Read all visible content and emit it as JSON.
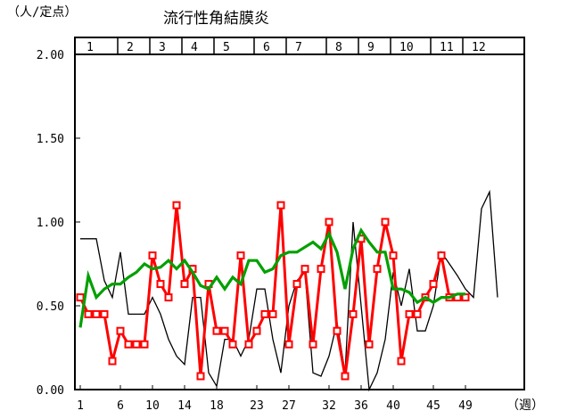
{
  "chart_data": {
    "type": "line",
    "title": "流行性角結膜炎",
    "ylabel": "（人/定点）",
    "xlabel": "（週）",
    "ylim": [
      0,
      2
    ],
    "y_ticks": [
      "0.00",
      "0.50",
      "1.00",
      "1.50",
      "2.00"
    ],
    "xlim": [
      1,
      53
    ],
    "x_ticks": [
      "1",
      "6",
      "10",
      "14",
      "18",
      "23",
      "27",
      "32",
      "36",
      "40",
      "45",
      "49"
    ],
    "month_labels": [
      "1",
      "2",
      "3",
      "4",
      "5",
      "6",
      "7",
      "8",
      "9",
      "10",
      "11",
      "12"
    ],
    "month_start_weeks": [
      1,
      6,
      10,
      14,
      18,
      23,
      27,
      32,
      36,
      40,
      45,
      49
    ],
    "grid": false,
    "series": [
      {
        "color": "#000000",
        "style": "thin",
        "values": [
          0.9,
          0.9,
          0.9,
          0.65,
          0.55,
          0.82,
          0.45,
          0.45,
          0.45,
          0.55,
          0.45,
          0.3,
          0.2,
          0.15,
          0.55,
          0.55,
          0.1,
          0.02,
          0.3,
          0.3,
          0.2,
          0.3,
          0.6,
          0.6,
          0.3,
          0.1,
          0.5,
          0.65,
          0.7,
          0.1,
          0.08,
          0.2,
          0.4,
          0.1,
          1.0,
          0.5,
          0.0,
          0.1,
          0.3,
          0.7,
          0.5,
          0.72,
          0.35,
          0.35,
          0.5,
          0.82,
          0.75,
          0.68,
          0.6,
          0.55,
          1.08,
          1.18,
          0.55
        ]
      },
      {
        "color": "#ff0000",
        "style": "square-markers",
        "values": [
          0.55,
          0.45,
          0.45,
          0.45,
          0.17,
          0.35,
          0.27,
          0.27,
          0.27,
          0.8,
          0.63,
          0.55,
          1.1,
          0.63,
          0.72,
          0.08,
          0.63,
          0.35,
          0.35,
          0.27,
          0.8,
          0.27,
          0.35,
          0.45,
          0.45,
          1.1,
          0.27,
          0.63,
          0.72,
          0.27,
          0.72,
          1.0,
          0.35,
          0.08,
          0.45,
          0.9,
          0.27,
          0.72,
          1.0,
          0.8,
          0.17,
          0.45,
          0.45,
          0.55,
          0.63,
          0.8,
          0.55,
          0.55,
          0.55
        ]
      },
      {
        "color": "#00a000",
        "style": "thick",
        "values": [
          0.37,
          0.68,
          0.55,
          0.6,
          0.63,
          0.63,
          0.67,
          0.7,
          0.75,
          0.72,
          0.73,
          0.77,
          0.72,
          0.77,
          0.7,
          0.62,
          0.6,
          0.67,
          0.6,
          0.67,
          0.63,
          0.77,
          0.77,
          0.7,
          0.72,
          0.8,
          0.82,
          0.82,
          0.85,
          0.88,
          0.84,
          0.93,
          0.82,
          0.6,
          0.84,
          0.95,
          0.88,
          0.82,
          0.82,
          0.6,
          0.6,
          0.58,
          0.52,
          0.55,
          0.52,
          0.55,
          0.55,
          0.57,
          0.57
        ]
      }
    ]
  }
}
